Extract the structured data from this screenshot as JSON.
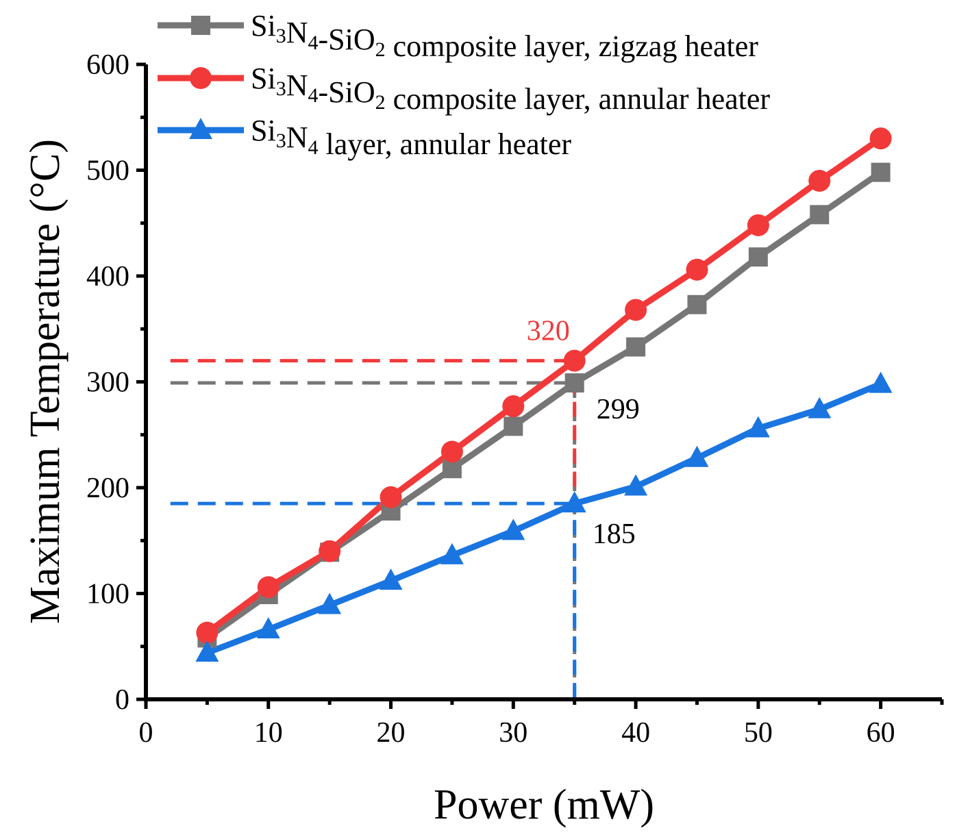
{
  "chart_data": {
    "type": "line",
    "title": "",
    "xlabel": "Power (mW)",
    "ylabel": "Maximum Temperature (°C)",
    "xlim": [
      0,
      65
    ],
    "ylim": [
      0,
      600
    ],
    "x_ticks": [
      0,
      10,
      20,
      30,
      40,
      50,
      60
    ],
    "x_tick_labels": [
      "0",
      "10",
      "20",
      "30",
      "40",
      "50",
      "60"
    ],
    "y_ticks": [
      0,
      100,
      200,
      300,
      400,
      500,
      600
    ],
    "y_tick_labels": [
      "0",
      "100",
      "200",
      "300",
      "400",
      "500",
      "600"
    ],
    "grid": false,
    "legend_position": "top-left",
    "x": [
      5,
      10,
      15,
      20,
      25,
      30,
      35,
      40,
      45,
      50,
      55,
      60
    ],
    "series": [
      {
        "name": "Si3N4-SiO2 composite layer, zigzag heater",
        "legend": {
          "p1": "Si",
          "s1": "3",
          "p2": "N",
          "s2": "4",
          "p3": "-SiO",
          "s3": "2",
          "p4": " composite layer, zigzag heater"
        },
        "color": "#767676",
        "marker": "square",
        "values": [
          58,
          99,
          139,
          178,
          218,
          258,
          299,
          333,
          373,
          418,
          458,
          498
        ]
      },
      {
        "name": "Si3N4-SiO2 composite layer, annular heater",
        "legend": {
          "p1": "Si",
          "s1": "3",
          "p2": "N",
          "s2": "4",
          "p3": "-SiO",
          "s3": "2",
          "p4": " composite layer, annular heater"
        },
        "color": "#f2393a",
        "marker": "circle",
        "values": [
          63,
          106,
          140,
          191,
          234,
          277,
          320,
          368,
          406,
          448,
          490,
          530
        ]
      },
      {
        "name": "Si3N4 layer, annular heater",
        "legend": {
          "p1": "Si",
          "s1": "3",
          "p2": "N",
          "s2": "4",
          "p3": "",
          "s3": "",
          "p4": " layer, annular heater"
        },
        "color": "#1a75e0",
        "marker": "triangle",
        "values": [
          44,
          66,
          89,
          112,
          136,
          159,
          185,
          201,
          228,
          256,
          274,
          298
        ]
      }
    ],
    "reference_lines": [
      {
        "x_from": 2,
        "x_to": 35,
        "y": 320,
        "color": "#f2393a"
      },
      {
        "x_from": 2,
        "x_to": 35,
        "y": 299,
        "color": "#767676"
      },
      {
        "x_from": 2,
        "x_to": 35,
        "y": 185,
        "color": "#1a75e0"
      }
    ],
    "annotations": [
      {
        "text": "320",
        "x": 35,
        "y": 320,
        "color": "#f2393a"
      },
      {
        "text": "299",
        "x": 35,
        "y": 299,
        "color": "#000000"
      },
      {
        "text": "185",
        "x": 35,
        "y": 185,
        "color": "#000000"
      }
    ]
  }
}
